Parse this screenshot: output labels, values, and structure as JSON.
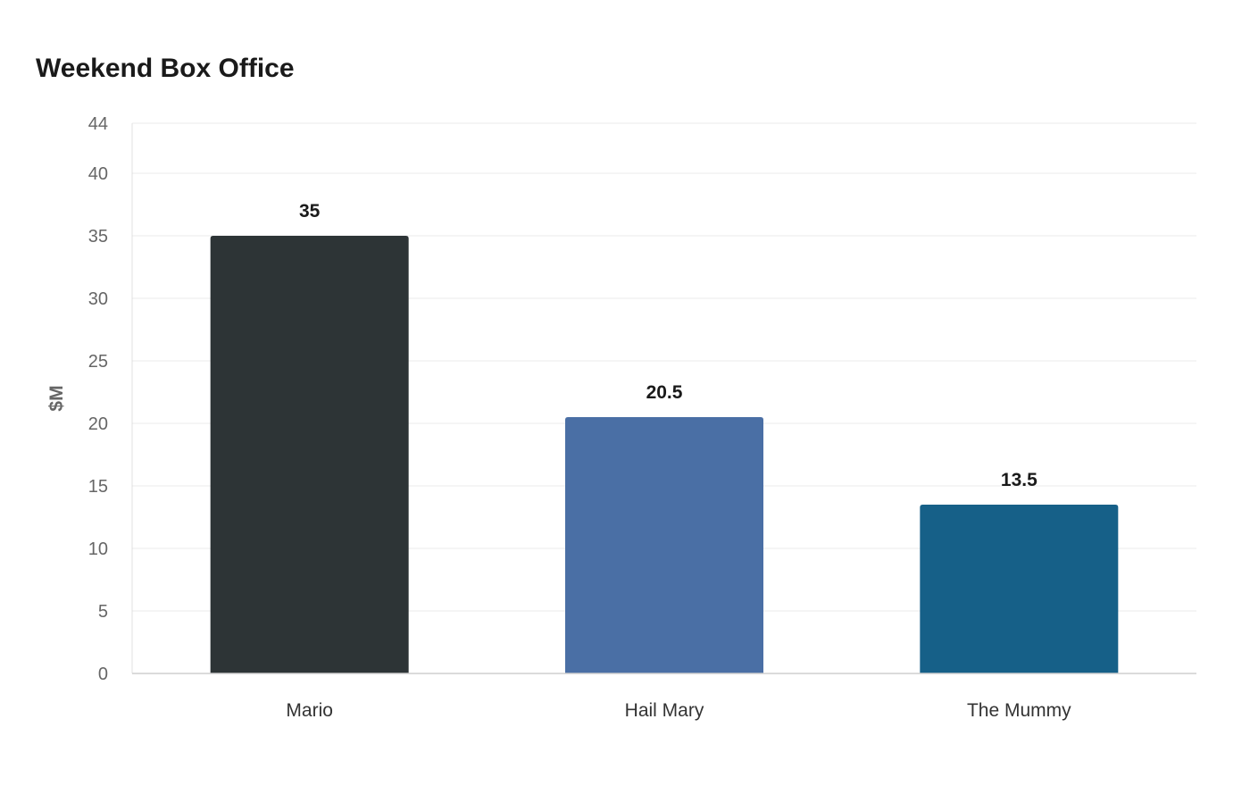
{
  "chart_data": {
    "type": "bar",
    "title": "Weekend Box Office",
    "xlabel": "",
    "ylabel": "$M",
    "categories": [
      "Mario",
      "Hail Mary",
      "The Mummy"
    ],
    "values": [
      35,
      20.5,
      13.5
    ],
    "data_labels": [
      "35",
      "20.5",
      "13.5"
    ],
    "colors": [
      "#2d3436",
      "#4a6fa5",
      "#166088"
    ],
    "ylim": [
      0,
      44
    ],
    "yticks": [
      0,
      5,
      10,
      15,
      20,
      25,
      30,
      35,
      40,
      44
    ],
    "grid": true,
    "legend": "none"
  }
}
